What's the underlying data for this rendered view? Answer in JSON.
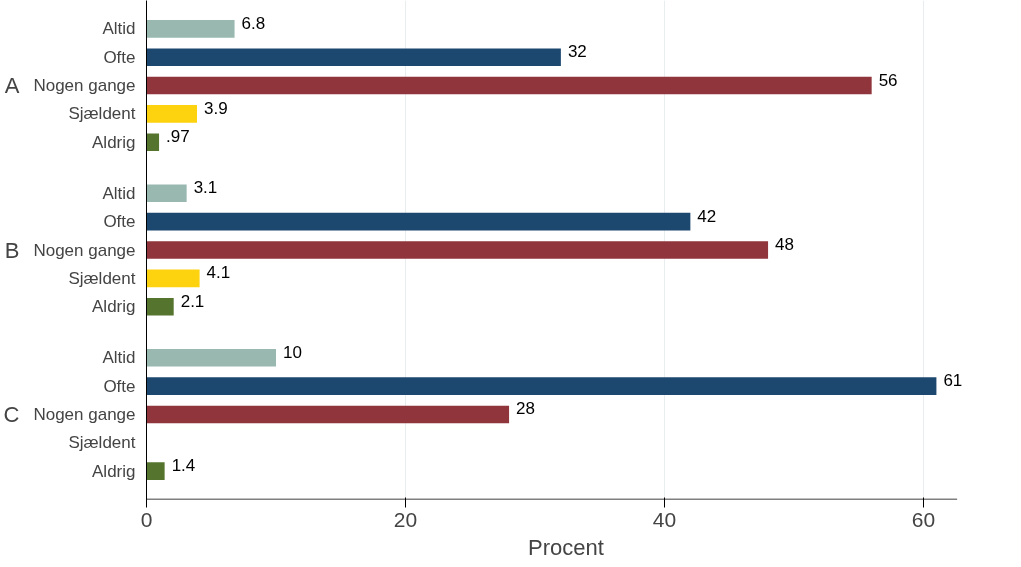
{
  "chart_data": {
    "type": "bar",
    "orientation": "horizontal",
    "xlabel": "Procent",
    "categories": [
      "Altid",
      "Ofte",
      "Nogen gange",
      "Sjældent",
      "Aldrig",
      "Altid",
      "Ofte",
      "Nogen gange",
      "Sjældent",
      "Aldrig",
      "Altid",
      "Ofte",
      "Nogen gange",
      "Sjældent",
      "Aldrig"
    ],
    "values": [
      6.8,
      32,
      56,
      3.9,
      0.97,
      3.1,
      42,
      48,
      4.1,
      2.1,
      10,
      61,
      28,
      null,
      1.4
    ],
    "value_labels": [
      "6.8",
      "32",
      "56",
      "3.9",
      ".97",
      "3.1",
      "42",
      "48",
      "4.1",
      "2.1",
      "10",
      "61",
      "28",
      null,
      "1.4"
    ],
    "colors": [
      "#98b8b0",
      "#1c476f",
      "#90353b",
      "#fdd20e",
      "#55752f",
      "#98b8b0",
      "#1c476f",
      "#90353b",
      "#fdd20e",
      "#55752f",
      "#98b8b0",
      "#1c476f",
      "#90353b",
      "#fdd20e",
      "#55752f"
    ],
    "annotations": [
      "A",
      "B",
      "C"
    ],
    "xlim": [
      0,
      62.6
    ],
    "xticks": [
      0,
      20,
      40,
      60
    ],
    "grid": "x"
  }
}
